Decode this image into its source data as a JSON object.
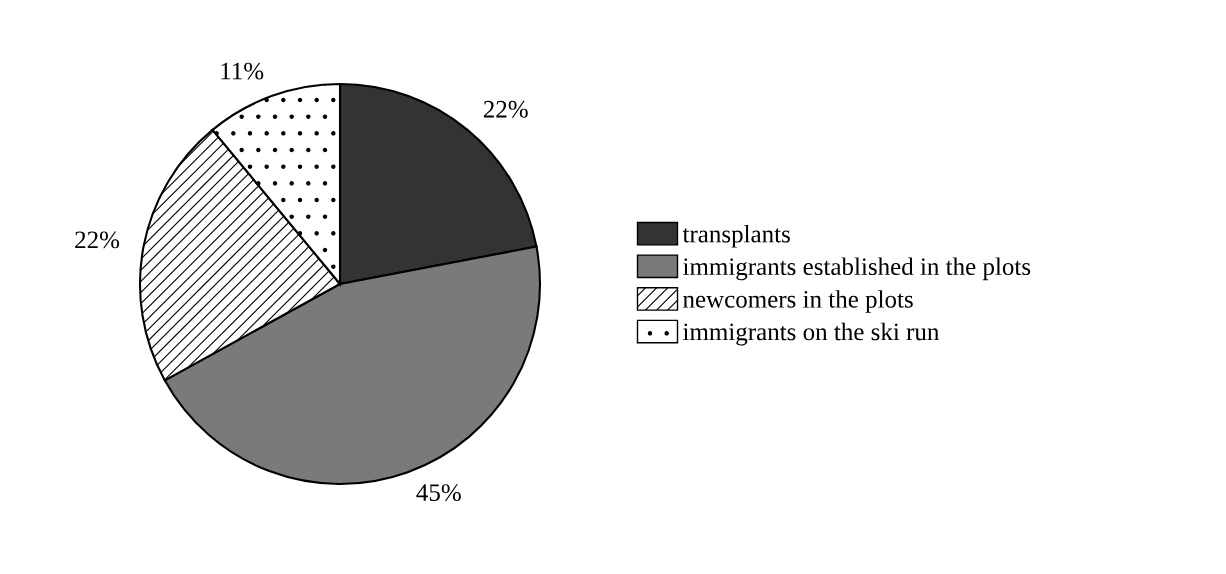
{
  "chart_data": {
    "type": "pie",
    "categories": [
      "transplants",
      "immigrants established in the plots",
      "newcomers in the plots",
      "immigrants on the ski run"
    ],
    "values": [
      22,
      45,
      22,
      11
    ],
    "value_labels": [
      "22%",
      "45%",
      "22%",
      "11%"
    ],
    "colors": [
      "#333333",
      "#7a7a7a",
      "#ffffff",
      "#ffffff"
    ],
    "legend": "right"
  }
}
